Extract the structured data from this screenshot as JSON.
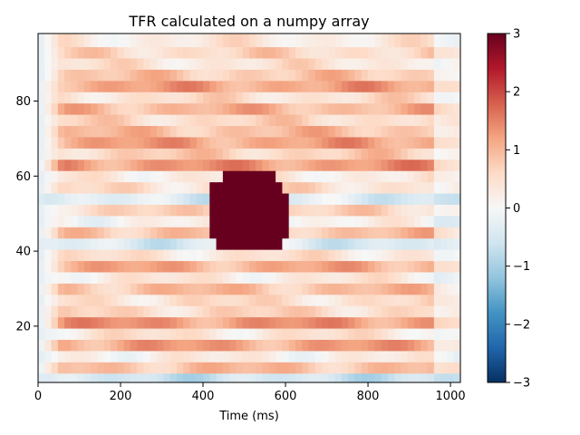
{
  "chart_data": {
    "type": "heatmap",
    "title": "TFR calculated on a numpy array",
    "xlabel": "Time (ms)",
    "ylabel": "",
    "xlim": [
      0,
      1024
    ],
    "ylim": [
      5,
      98
    ],
    "x_ticks": [
      0,
      200,
      400,
      600,
      800,
      1000
    ],
    "y_ticks": [
      20,
      40,
      60,
      80
    ],
    "colorbar": {
      "colormap": "RdBu_r",
      "vmin": -3,
      "vmax": 3,
      "ticks": [
        3,
        2,
        1,
        0,
        -1,
        -2,
        -3
      ],
      "tick_labels": [
        "3",
        "2",
        "1",
        "0",
        "−1",
        "−2",
        "−3"
      ]
    },
    "frequency_bands": [
      {
        "freq": 6,
        "base": -0.6
      },
      {
        "freq": 9,
        "base": 0.9
      },
      {
        "freq": 12,
        "base": 0.2
      },
      {
        "freq": 15,
        "base": 1.2
      },
      {
        "freq": 18,
        "base": 0.4
      },
      {
        "freq": 21,
        "base": 1.3
      },
      {
        "freq": 24,
        "base": 0.6
      },
      {
        "freq": 27,
        "base": 0.5
      },
      {
        "freq": 30,
        "base": 0.9
      },
      {
        "freq": 33,
        "base": 0.3
      },
      {
        "freq": 36,
        "base": 1.1
      },
      {
        "freq": 39,
        "base": 0.4
      },
      {
        "freq": 42,
        "base": -0.4
      },
      {
        "freq": 45,
        "base": 0.9
      },
      {
        "freq": 48,
        "base": 0.1
      },
      {
        "freq": 51,
        "base": 0.6
      },
      {
        "freq": 54,
        "base": -0.4
      },
      {
        "freq": 57,
        "base": 0.5
      },
      {
        "freq": 60,
        "base": 0.3
      },
      {
        "freq": 63,
        "base": 1.3
      },
      {
        "freq": 66,
        "base": 0.7
      },
      {
        "freq": 69,
        "base": 1.2
      },
      {
        "freq": 72,
        "base": 0.9
      },
      {
        "freq": 75,
        "base": 0.6
      },
      {
        "freq": 78,
        "base": 1.0
      },
      {
        "freq": 81,
        "base": 0.5
      },
      {
        "freq": 84,
        "base": 1.2
      },
      {
        "freq": 87,
        "base": 0.8
      },
      {
        "freq": 90,
        "base": 0.4
      },
      {
        "freq": 93,
        "base": 0.6
      },
      {
        "freq": 96,
        "base": 0.3
      }
    ],
    "activation": {
      "time_range": [
        420,
        600
      ],
      "freq_range": [
        40,
        60
      ],
      "value": 3
    }
  }
}
